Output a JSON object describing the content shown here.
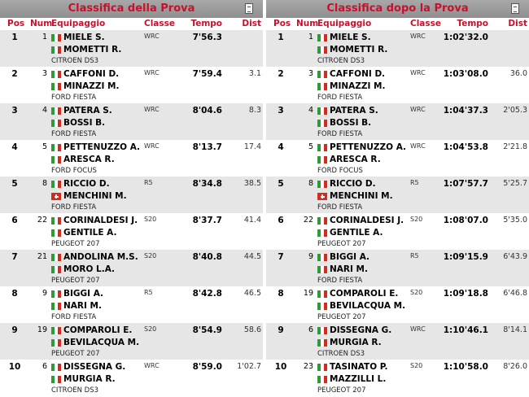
{
  "headers": {
    "pos": "Pos",
    "num": "Num",
    "crew": "Equipaggio",
    "class": "Classe",
    "time": "Tempo",
    "dist": "Dist"
  },
  "colors": {
    "title_text": "#c8102e",
    "odd_row": "#e6e6e6",
    "title_bar": "#9a9a9a"
  },
  "left": {
    "title": "Classifica della Prova",
    "rows": [
      {
        "pos": "1",
        "num": "1",
        "d1": "MIELE S.",
        "f1": "it",
        "d2": "MOMETTI R.",
        "f2": "it",
        "car": "CITROEN DS3",
        "cls": "WRC",
        "time": "7'56.3",
        "dist": ""
      },
      {
        "pos": "2",
        "num": "3",
        "d1": "CAFFONI D.",
        "f1": "it",
        "d2": "MINAZZI M.",
        "f2": "it",
        "car": "FORD FIESTA",
        "cls": "WRC",
        "time": "7'59.4",
        "dist": "3.1"
      },
      {
        "pos": "3",
        "num": "4",
        "d1": "PATERA S.",
        "f1": "it",
        "d2": "BOSSI B.",
        "f2": "it",
        "car": "FORD FIESTA",
        "cls": "WRC",
        "time": "8'04.6",
        "dist": "8.3"
      },
      {
        "pos": "4",
        "num": "5",
        "d1": "PETTENUZZO A.",
        "f1": "it",
        "d2": "ARESCA R.",
        "f2": "it",
        "car": "FORD FOCUS",
        "cls": "WRC",
        "time": "8'13.7",
        "dist": "17.4"
      },
      {
        "pos": "5",
        "num": "8",
        "d1": "RICCIO D.",
        "f1": "it",
        "d2": "MENCHINI M.",
        "f2": "ch",
        "car": "FORD FIESTA",
        "cls": "R5",
        "time": "8'34.8",
        "dist": "38.5"
      },
      {
        "pos": "6",
        "num": "22",
        "d1": "CORINALDESI J.",
        "f1": "it",
        "d2": "GENTILE A.",
        "f2": "it",
        "car": "PEUGEOT 207",
        "cls": "S20",
        "time": "8'37.7",
        "dist": "41.4"
      },
      {
        "pos": "7",
        "num": "21",
        "d1": "ANDOLINA M.S.",
        "f1": "it",
        "d2": "MORO L.A.",
        "f2": "it",
        "car": "PEUGEOT 207",
        "cls": "S20",
        "time": "8'40.8",
        "dist": "44.5"
      },
      {
        "pos": "8",
        "num": "9",
        "d1": "BIGGI A.",
        "f1": "it",
        "d2": "NARI M.",
        "f2": "it",
        "car": "FORD FIESTA",
        "cls": "R5",
        "time": "8'42.8",
        "dist": "46.5"
      },
      {
        "pos": "9",
        "num": "19",
        "d1": "COMPAROLI E.",
        "f1": "it",
        "d2": "BEVILACQUA M.",
        "f2": "it",
        "car": "PEUGEOT 207",
        "cls": "S20",
        "time": "8'54.9",
        "dist": "58.6"
      },
      {
        "pos": "10",
        "num": "6",
        "d1": "DISSEGNA G.",
        "f1": "it",
        "d2": "MURGIA R.",
        "f2": "it",
        "car": "CITROEN DS3",
        "cls": "WRC",
        "time": "8'59.0",
        "dist": "1'02.7"
      }
    ]
  },
  "right": {
    "title": "Classifica dopo la Prova",
    "rows": [
      {
        "pos": "1",
        "num": "1",
        "d1": "MIELE S.",
        "f1": "it",
        "d2": "MOMETTI R.",
        "f2": "it",
        "car": "CITROEN DS3",
        "cls": "WRC",
        "time": "1:02'32.0",
        "dist": ""
      },
      {
        "pos": "2",
        "num": "3",
        "d1": "CAFFONI D.",
        "f1": "it",
        "d2": "MINAZZI M.",
        "f2": "it",
        "car": "FORD FIESTA",
        "cls": "WRC",
        "time": "1:03'08.0",
        "dist": "36.0"
      },
      {
        "pos": "3",
        "num": "4",
        "d1": "PATERA S.",
        "f1": "it",
        "d2": "BOSSI B.",
        "f2": "it",
        "car": "FORD FIESTA",
        "cls": "WRC",
        "time": "1:04'37.3",
        "dist": "2'05.3"
      },
      {
        "pos": "4",
        "num": "5",
        "d1": "PETTENUZZO A.",
        "f1": "it",
        "d2": "ARESCA R.",
        "f2": "it",
        "car": "FORD FOCUS",
        "cls": "WRC",
        "time": "1:04'53.8",
        "dist": "2'21.8"
      },
      {
        "pos": "5",
        "num": "8",
        "d1": "RICCIO D.",
        "f1": "it",
        "d2": "MENCHINI M.",
        "f2": "ch",
        "car": "FORD FIESTA",
        "cls": "R5",
        "time": "1:07'57.7",
        "dist": "5'25.7"
      },
      {
        "pos": "6",
        "num": "22",
        "d1": "CORINALDESI J.",
        "f1": "it",
        "d2": "GENTILE A.",
        "f2": "it",
        "car": "PEUGEOT 207",
        "cls": "S20",
        "time": "1:08'07.0",
        "dist": "5'35.0"
      },
      {
        "pos": "7",
        "num": "9",
        "d1": "BIGGI A.",
        "f1": "it",
        "d2": "NARI M.",
        "f2": "it",
        "car": "FORD FIESTA",
        "cls": "R5",
        "time": "1:09'15.9",
        "dist": "6'43.9"
      },
      {
        "pos": "8",
        "num": "19",
        "d1": "COMPAROLI E.",
        "f1": "it",
        "d2": "BEVILACQUA M.",
        "f2": "it",
        "car": "PEUGEOT 207",
        "cls": "S20",
        "time": "1:09'18.8",
        "dist": "6'46.8"
      },
      {
        "pos": "9",
        "num": "6",
        "d1": "DISSEGNA G.",
        "f1": "it",
        "d2": "MURGIA R.",
        "f2": "it",
        "car": "CITROEN DS3",
        "cls": "WRC",
        "time": "1:10'46.1",
        "dist": "8'14.1"
      },
      {
        "pos": "10",
        "num": "23",
        "d1": "TASINATO P.",
        "f1": "it",
        "d2": "MAZZILLI L.",
        "f2": "it",
        "car": "PEUGEOT 207",
        "cls": "S20",
        "time": "1:10'58.0",
        "dist": "8'26.0"
      }
    ]
  }
}
